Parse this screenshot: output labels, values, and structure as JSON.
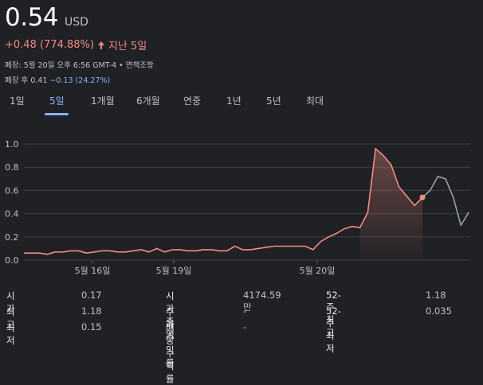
{
  "header": {
    "price": "0.54",
    "currency": "USD",
    "change": "+0.48 (774.88%)",
    "period": "지난 5일"
  },
  "meta": {
    "close_line": "폐장: 5월 20일 오후 6:56 GMT-4 • 면책조항",
    "after_prefix": "폐장 후 0.41",
    "after_change": "−0.13 (24.27%)"
  },
  "tabs": [
    "1일",
    "5일",
    "1개월",
    "6개월",
    "연중",
    "1년",
    "5년",
    "최대"
  ],
  "active_tab": "5일",
  "chart_data": {
    "type": "line",
    "y_ticks": [
      "1.0",
      "0.8",
      "0.6",
      "0.4",
      "0.2",
      "0.0"
    ],
    "x_labels": [
      "5월 16일",
      "5월 19일",
      "5월 20일"
    ],
    "ylim": [
      0,
      1.0
    ],
    "grid": true,
    "series": [
      {
        "segment": "regular",
        "color": "#f28b82",
        "values": [
          0.06,
          0.06,
          0.06,
          0.05,
          0.07,
          0.07,
          0.08,
          0.08,
          0.06,
          0.07,
          0.08,
          0.08,
          0.07,
          0.07,
          0.08,
          0.09,
          0.07,
          0.1,
          0.07,
          0.09,
          0.09,
          0.08,
          0.08,
          0.09,
          0.09,
          0.08,
          0.08,
          0.12,
          0.09,
          0.09,
          0.1,
          0.11,
          0.12,
          0.12,
          0.12,
          0.12,
          0.12,
          0.09,
          0.16,
          0.2,
          0.23,
          0.27,
          0.29,
          0.28,
          0.41,
          0.96,
          0.9,
          0.82,
          0.63,
          0.55,
          0.47,
          0.54
        ]
      },
      {
        "segment": "after-hours",
        "color": "#9aa0a6",
        "values": [
          0.54,
          0.6,
          0.72,
          0.7,
          0.54,
          0.3,
          0.41
        ]
      }
    ],
    "current_marker": 0.54
  },
  "stats": {
    "col1": [
      {
        "label": "시가",
        "value": "0.17"
      },
      {
        "label": "최고",
        "value": "1.18"
      },
      {
        "label": "최저",
        "value": "0.15"
      }
    ],
    "col2": [
      {
        "label": "시가총액",
        "value": "4174.59만"
      },
      {
        "label": "주가수익률",
        "value": "-"
      },
      {
        "label": "배당수익률",
        "value": "-"
      }
    ],
    "col3": [
      {
        "label": "52-주 최고",
        "value": "1.18"
      },
      {
        "label": "52-주 최저",
        "value": "0.035"
      }
    ]
  }
}
